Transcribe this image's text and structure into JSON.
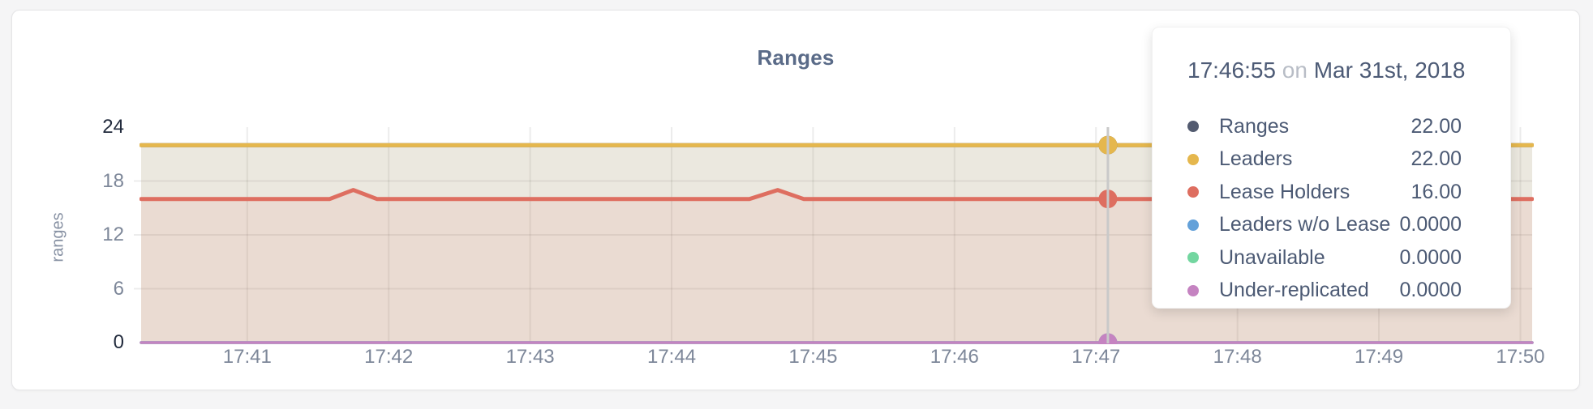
{
  "chart": {
    "title": "Ranges",
    "ylabel": "ranges"
  },
  "chart_data": {
    "type": "area",
    "title": "Ranges",
    "xlabel": "",
    "ylabel": "ranges",
    "ylim": [
      0,
      24
    ],
    "y_ticks": [
      0,
      6,
      12,
      18,
      24
    ],
    "grid": true,
    "x_axis_time_range": [
      "17:40:15",
      "17:50:05"
    ],
    "x_range_seconds": [
      0,
      590
    ],
    "x_ticks": [
      {
        "label": "17:41",
        "t": 45
      },
      {
        "label": "17:42",
        "t": 105
      },
      {
        "label": "17:43",
        "t": 165
      },
      {
        "label": "17:44",
        "t": 225
      },
      {
        "label": "17:45",
        "t": 285
      },
      {
        "label": "17:46",
        "t": 345
      },
      {
        "label": "17:47",
        "t": 405
      },
      {
        "label": "17:48",
        "t": 465
      },
      {
        "label": "17:49",
        "t": 525
      },
      {
        "label": "17:50",
        "t": 585
      }
    ],
    "series": [
      {
        "name": "Ranges",
        "color": "#535b70",
        "hover_value": "22.00",
        "points": [
          [
            0,
            22
          ],
          [
            590,
            22
          ]
        ]
      },
      {
        "name": "Leaders",
        "color": "#e5b74d",
        "hover_value": "22.00",
        "points": [
          [
            0,
            22
          ],
          [
            590,
            22
          ]
        ]
      },
      {
        "name": "Lease Holders",
        "color": "#de6e60",
        "hover_value": "16.00",
        "points": [
          [
            0,
            16
          ],
          [
            80,
            16
          ],
          [
            90,
            17
          ],
          [
            100,
            16
          ],
          [
            258,
            16
          ],
          [
            270,
            17
          ],
          [
            281,
            16
          ],
          [
            590,
            16
          ]
        ]
      },
      {
        "name": "Leaders w/o Lease",
        "color": "#64a1d9",
        "hover_value": "0.0000",
        "points": [
          [
            0,
            0
          ],
          [
            590,
            0
          ]
        ]
      },
      {
        "name": "Unavailable",
        "color": "#73d6a0",
        "hover_value": "0.0000",
        "points": [
          [
            0,
            0
          ],
          [
            590,
            0
          ]
        ]
      },
      {
        "name": "Under-replicated",
        "color": "#c583c1",
        "hover_value": "0.0000",
        "points": [
          [
            0,
            0
          ],
          [
            590,
            0
          ]
        ]
      }
    ],
    "hover": {
      "time": "17:46:55",
      "connector": "on",
      "date": "Mar 31st, 2018"
    },
    "legend_position": "tooltip"
  }
}
